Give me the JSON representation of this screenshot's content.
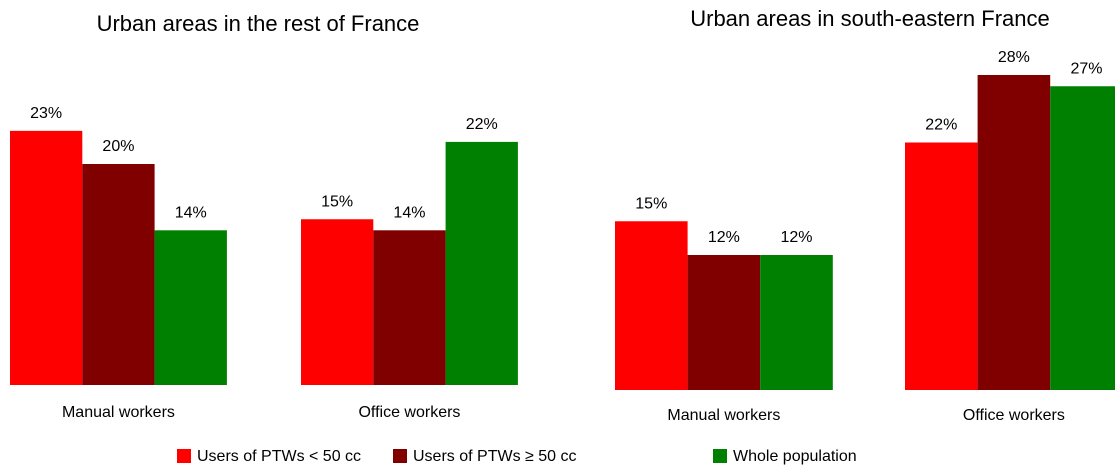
{
  "chart_data": [
    {
      "type": "bar",
      "title": "Urban areas in the rest of France",
      "categories": [
        "Manual workers",
        "Office workers"
      ],
      "series": [
        {
          "name": "Users of PTWs < 50 cc",
          "color": "#ff0000",
          "values": [
            23,
            15
          ],
          "value_labels": [
            "23%",
            "15%"
          ]
        },
        {
          "name": "Users of PTWs ≥ 50 cc",
          "color": "#800000",
          "values": [
            20,
            14
          ],
          "value_labels": [
            "20%",
            "14%"
          ]
        },
        {
          "name": "Whole population",
          "color": "#008000",
          "values": [
            14,
            22
          ],
          "value_labels": [
            "14%",
            "22%"
          ]
        }
      ]
    },
    {
      "type": "bar",
      "title": "Urban areas in south-eastern France",
      "categories": [
        "Manual workers",
        "Office workers"
      ],
      "series": [
        {
          "color": "#ff0000",
          "values": [
            15,
            22
          ],
          "value_labels": [
            "15%",
            "22%"
          ]
        },
        {
          "color": "#800000",
          "values": [
            12,
            28
          ],
          "value_labels": [
            "12%",
            "28%"
          ]
        },
        {
          "color": "#008000",
          "values": [
            12,
            27
          ],
          "value_labels": [
            "12%",
            "27%"
          ]
        }
      ]
    }
  ]
}
